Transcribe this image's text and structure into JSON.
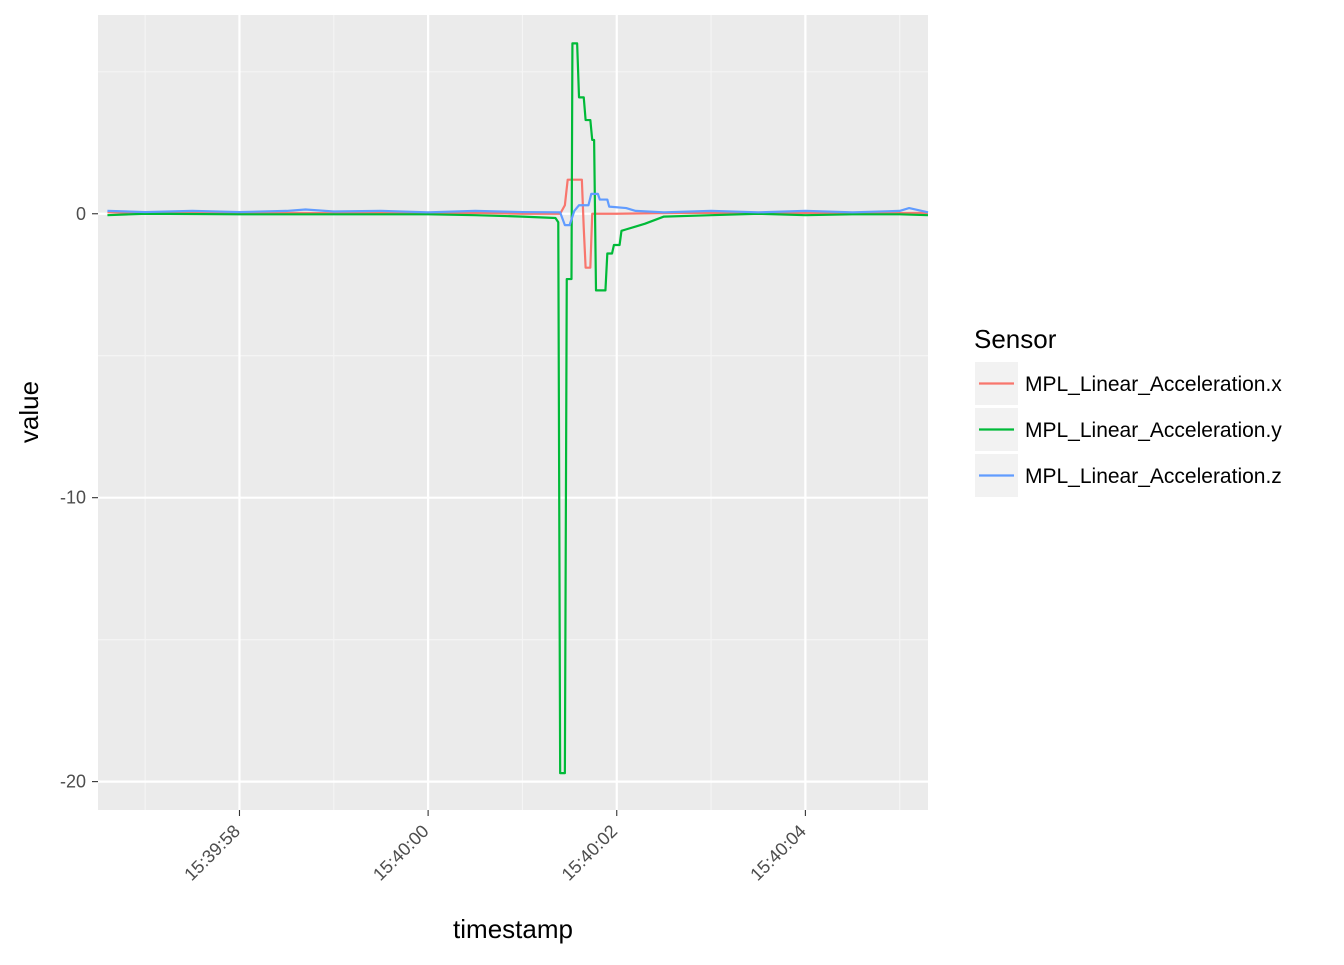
{
  "chart_data": {
    "type": "line",
    "xlabel": "timestamp",
    "ylabel": "value",
    "x_axis": {
      "scale": "time",
      "range": [
        "15:39:56.5",
        "15:40:05.3"
      ],
      "ticks": [
        "15:39:58",
        "15:40:00",
        "15:40:02",
        "15:40:04"
      ]
    },
    "y_axis": {
      "range": [
        -21,
        7
      ],
      "ticks": [
        -20,
        -10,
        0
      ],
      "tick_labels": [
        "-20",
        "-10",
        "0"
      ]
    },
    "grid": true,
    "legend": {
      "title": "Sensor",
      "placement": "right"
    },
    "series": [
      {
        "name": "MPL_Linear_Acceleration.x",
        "color": "#F8766D",
        "points": [
          [
            "15:39:56.60",
            0.05
          ],
          [
            "15:39:57.00",
            0.02
          ],
          [
            "15:39:57.50",
            0.03
          ],
          [
            "15:39:58.00",
            0.02
          ],
          [
            "15:39:58.50",
            0.03
          ],
          [
            "15:39:59.00",
            0.02
          ],
          [
            "15:39:59.50",
            0.03
          ],
          [
            "15:40:00.00",
            0.02
          ],
          [
            "15:40:00.50",
            0.03
          ],
          [
            "15:40:01.00",
            0.0
          ],
          [
            "15:40:01.40",
            0.0
          ],
          [
            "15:40:01.45",
            0.3
          ],
          [
            "15:40:01.48",
            1.2
          ],
          [
            "15:40:01.63",
            1.2
          ],
          [
            "15:40:01.65",
            -0.5
          ],
          [
            "15:40:01.67",
            -1.9
          ],
          [
            "15:40:01.72",
            -1.9
          ],
          [
            "15:40:01.74",
            0.0
          ],
          [
            "15:40:02.00",
            0.0
          ],
          [
            "15:40:02.50",
            0.02
          ],
          [
            "15:40:03.00",
            0.03
          ],
          [
            "15:40:03.50",
            0.02
          ],
          [
            "15:40:04.00",
            0.03
          ],
          [
            "15:40:04.50",
            0.02
          ],
          [
            "15:40:05.30",
            0.03
          ]
        ]
      },
      {
        "name": "MPL_Linear_Acceleration.y",
        "color": "#00BA38",
        "points": [
          [
            "15:39:56.60",
            -0.05
          ],
          [
            "15:39:57.00",
            0.0
          ],
          [
            "15:39:58.00",
            -0.02
          ],
          [
            "15:39:59.00",
            -0.02
          ],
          [
            "15:40:00.00",
            -0.02
          ],
          [
            "15:40:00.50",
            -0.05
          ],
          [
            "15:40:01.00",
            -0.1
          ],
          [
            "15:40:01.35",
            -0.15
          ],
          [
            "15:40:01.38",
            -0.3
          ],
          [
            "15:40:01.40",
            -19.7
          ],
          [
            "15:40:01.45",
            -19.7
          ],
          [
            "15:40:01.47",
            -2.3
          ],
          [
            "15:40:01.52",
            -2.3
          ],
          [
            "15:40:01.53",
            6.0
          ],
          [
            "15:40:01.58",
            6.0
          ],
          [
            "15:40:01.60",
            4.1
          ],
          [
            "15:40:01.65",
            4.1
          ],
          [
            "15:40:01.67",
            3.3
          ],
          [
            "15:40:01.72",
            3.3
          ],
          [
            "15:40:01.74",
            2.6
          ],
          [
            "15:40:01.76",
            2.6
          ],
          [
            "15:40:01.78",
            -2.7
          ],
          [
            "15:40:01.88",
            -2.7
          ],
          [
            "15:40:01.90",
            -1.4
          ],
          [
            "15:40:01.95",
            -1.4
          ],
          [
            "15:40:01.97",
            -1.1
          ],
          [
            "15:40:02.03",
            -1.1
          ],
          [
            "15:40:02.05",
            -0.6
          ],
          [
            "15:40:02.10",
            -0.55
          ],
          [
            "15:40:02.20",
            -0.45
          ],
          [
            "15:40:02.30",
            -0.35
          ],
          [
            "15:40:02.50",
            -0.1
          ],
          [
            "15:40:03.00",
            -0.05
          ],
          [
            "15:40:03.50",
            0.0
          ],
          [
            "15:40:04.00",
            -0.05
          ],
          [
            "15:40:04.50",
            -0.02
          ],
          [
            "15:40:05.00",
            -0.02
          ],
          [
            "15:40:05.30",
            -0.05
          ]
        ]
      },
      {
        "name": "MPL_Linear_Acceleration.z",
        "color": "#619CFF",
        "points": [
          [
            "15:39:56.60",
            0.1
          ],
          [
            "15:39:57.00",
            0.06
          ],
          [
            "15:39:57.50",
            0.1
          ],
          [
            "15:39:58.00",
            0.06
          ],
          [
            "15:39:58.50",
            0.1
          ],
          [
            "15:39:58.70",
            0.15
          ],
          [
            "15:39:59.00",
            0.08
          ],
          [
            "15:39:59.50",
            0.1
          ],
          [
            "15:40:00.00",
            0.05
          ],
          [
            "15:40:00.50",
            0.1
          ],
          [
            "15:40:01.00",
            0.06
          ],
          [
            "15:40:01.40",
            0.05
          ],
          [
            "15:40:01.45",
            -0.4
          ],
          [
            "15:40:01.50",
            -0.4
          ],
          [
            "15:40:01.55",
            0.1
          ],
          [
            "15:40:01.60",
            0.3
          ],
          [
            "15:40:01.70",
            0.3
          ],
          [
            "15:40:01.73",
            0.7
          ],
          [
            "15:40:01.80",
            0.7
          ],
          [
            "15:40:01.82",
            0.5
          ],
          [
            "15:40:01.90",
            0.5
          ],
          [
            "15:40:01.92",
            0.25
          ],
          [
            "15:40:02.10",
            0.2
          ],
          [
            "15:40:02.20",
            0.1
          ],
          [
            "15:40:02.50",
            0.05
          ],
          [
            "15:40:03.00",
            0.1
          ],
          [
            "15:40:03.50",
            0.05
          ],
          [
            "15:40:04.00",
            0.1
          ],
          [
            "15:40:04.50",
            0.05
          ],
          [
            "15:40:05.00",
            0.1
          ],
          [
            "15:40:05.10",
            0.2
          ],
          [
            "15:40:05.30",
            0.05
          ]
        ]
      }
    ]
  }
}
